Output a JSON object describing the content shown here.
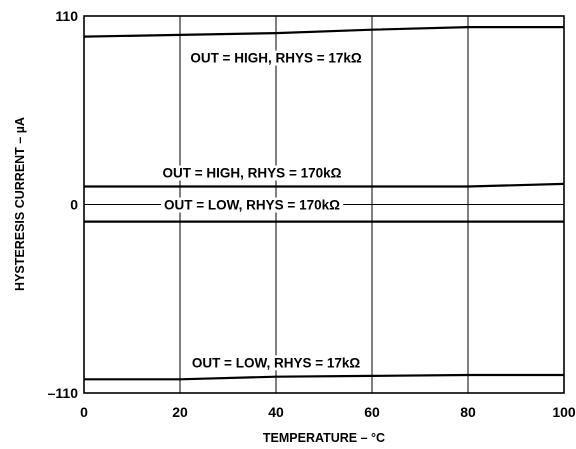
{
  "chart_data": {
    "type": "line",
    "xlabel": "TEMPERATURE – °C",
    "ylabel": "HYSTERESIS CURRENT – µA",
    "xlim": [
      0,
      100
    ],
    "ylim": [
      -110,
      110
    ],
    "x_ticks": [
      "0",
      "20",
      "40",
      "60",
      "80",
      "100"
    ],
    "y_ticks": [
      "110",
      "0",
      "–110"
    ],
    "grid": true,
    "series": [
      {
        "name": "OUT = HIGH, RHYS = 17kΩ",
        "x": [
          0,
          20,
          40,
          60,
          80,
          100
        ],
        "y": [
          98,
          99,
          100,
          102,
          103.5,
          103.5
        ]
      },
      {
        "name": "OUT = HIGH, RHYS = 170kΩ",
        "x": [
          0,
          20,
          40,
          60,
          80,
          100
        ],
        "y": [
          10.5,
          10.5,
          10.5,
          10.5,
          10.5,
          12
        ]
      },
      {
        "name": "OUT = LOW, RHYS = 170kΩ",
        "x": [
          0,
          20,
          40,
          60,
          80,
          100
        ],
        "y": [
          -10,
          -10,
          -10,
          -10,
          -10,
          -10
        ]
      },
      {
        "name": "OUT = LOW, RHYS = 17kΩ",
        "x": [
          0,
          20,
          40,
          60,
          80,
          100
        ],
        "y": [
          -102,
          -102,
          -100.5,
          -100,
          -99.5,
          -99.5
        ]
      }
    ]
  }
}
